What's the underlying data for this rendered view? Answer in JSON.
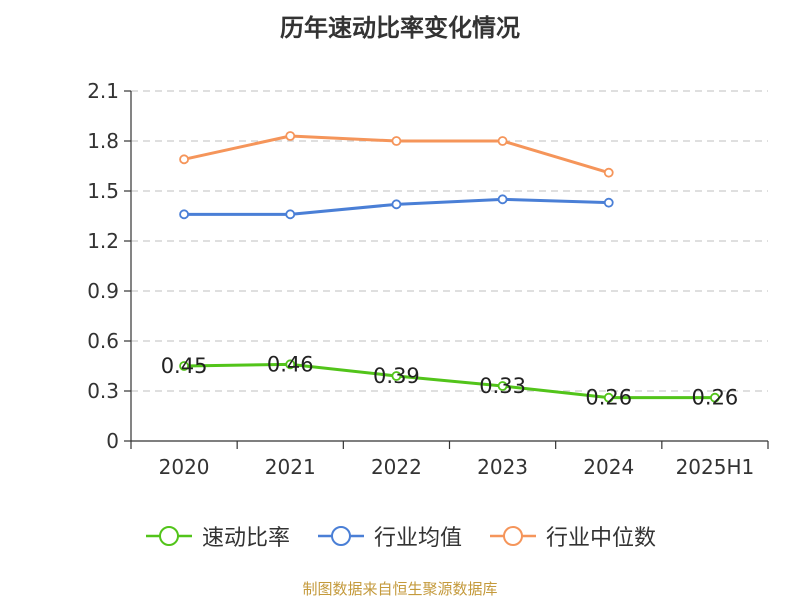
{
  "source_note": "制图数据来自恒生聚源数据库",
  "colors": {
    "speed_ratio": "#52c41a",
    "industry_mean": "#4a7fd6",
    "industry_median": "#f5955a",
    "axis": "#333333",
    "grid": "#cccccc"
  },
  "chart_data": {
    "type": "line",
    "title": "历年速动比率变化情况",
    "categories": [
      "2020",
      "2021",
      "2022",
      "2023",
      "2024",
      "2025H1"
    ],
    "ylim": [
      0,
      2.1
    ],
    "yticks": [
      "0",
      "0.3",
      "0.6",
      "0.9",
      "1.2",
      "1.5",
      "1.8",
      "2.1"
    ],
    "grid": true,
    "legend_position": "bottom",
    "series": [
      {
        "name": "速动比率",
        "key": "speed_ratio",
        "values": [
          0.45,
          0.46,
          0.39,
          0.33,
          0.26,
          0.26
        ],
        "labels": [
          "0.45",
          "0.46",
          "0.39",
          "0.33",
          "0.26",
          "0.26"
        ]
      },
      {
        "name": "行业均值",
        "key": "industry_mean",
        "values": [
          1.36,
          1.36,
          1.42,
          1.45,
          1.43,
          null
        ]
      },
      {
        "name": "行业中位数",
        "key": "industry_median",
        "values": [
          1.69,
          1.83,
          1.8,
          1.8,
          1.61,
          null
        ]
      }
    ]
  }
}
